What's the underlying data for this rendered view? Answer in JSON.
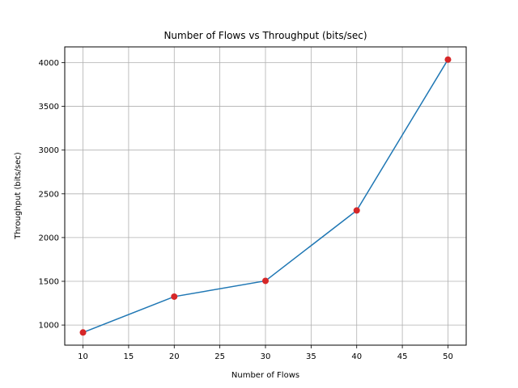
{
  "chart_data": {
    "type": "line",
    "title": "Number of Flows vs Throughput (bits/sec)",
    "xlabel": "Number of Flows",
    "ylabel": "Throughput (bits/sec)",
    "x": [
      10,
      20,
      30,
      40,
      50
    ],
    "series": [
      {
        "values": [
          915,
          1325,
          1505,
          2310,
          4035
        ],
        "line_color": "#1f77b4",
        "marker_color": "#d62728"
      }
    ],
    "xlim": [
      8,
      52
    ],
    "ylim": [
      770,
      4180
    ],
    "xticks": [
      "10",
      "15",
      "20",
      "25",
      "30",
      "35",
      "40",
      "45",
      "50"
    ],
    "yticks": [
      "1000",
      "1500",
      "2000",
      "2500",
      "3000",
      "3500",
      "4000"
    ],
    "grid": true,
    "legend": "none"
  }
}
